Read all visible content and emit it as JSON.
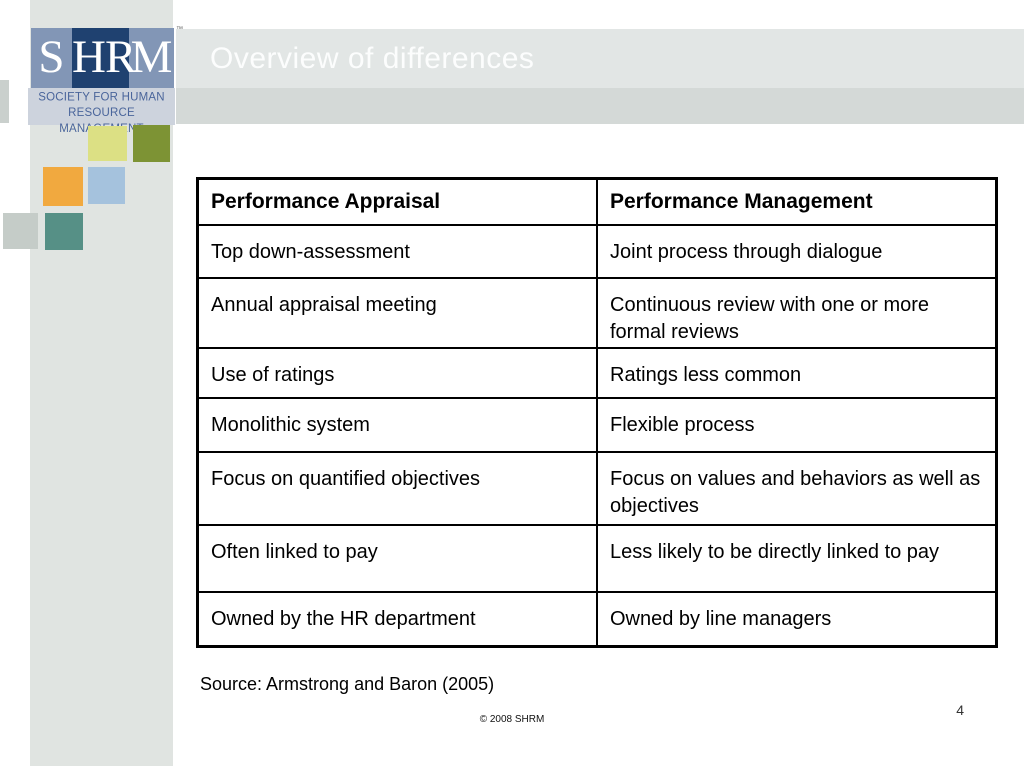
{
  "slide": {
    "title": "Overview of differences",
    "source": "Source: Armstrong and Baron (2005)",
    "copyright": "© 2008 SHRM",
    "page_number": "4"
  },
  "logo": {
    "letter_s": "S",
    "letters_hr": "HR",
    "letter_m": "M",
    "trademark": "™",
    "tagline_line1": "SOCIETY FOR HUMAN",
    "tagline_line2": "RESOURCE MANAGEMENT"
  },
  "table": {
    "headers": [
      "Performance Appraisal",
      "Performance Management"
    ],
    "rows": [
      {
        "left": "Top down-assessment",
        "right": "Joint process through dialogue"
      },
      {
        "left": "Annual appraisal meeting",
        "right": "Continuous review with one or more formal reviews"
      },
      {
        "left": "Use of ratings",
        "right": "Ratings less common"
      },
      {
        "left": "Monolithic system",
        "right": "Flexible process"
      },
      {
        "left": "Focus on quantified objectives",
        "right": "Focus on values and behaviors as well as objectives"
      },
      {
        "left": "Often linked to pay",
        "right": "Less likely to be directly linked to pay"
      },
      {
        "left": "Owned by the HR department",
        "right": "Owned by line managers"
      }
    ]
  },
  "colors": {
    "strip_gray": "#e0e4e1",
    "edge_gray": "#cad0cd",
    "lavender_band": "#cdd3dd",
    "banner_light": "#e2e6e5",
    "banner_dark": "#d4d9d7",
    "logo_blue": "#8296b6",
    "logo_navy": "#1f4170",
    "square_yellow": "#dce084",
    "square_olive": "#7d9334",
    "square_orange": "#f1a93f",
    "square_lightblue": "#a5c2dd",
    "square_gray": "#c5ccc8",
    "square_teal": "#569086"
  }
}
